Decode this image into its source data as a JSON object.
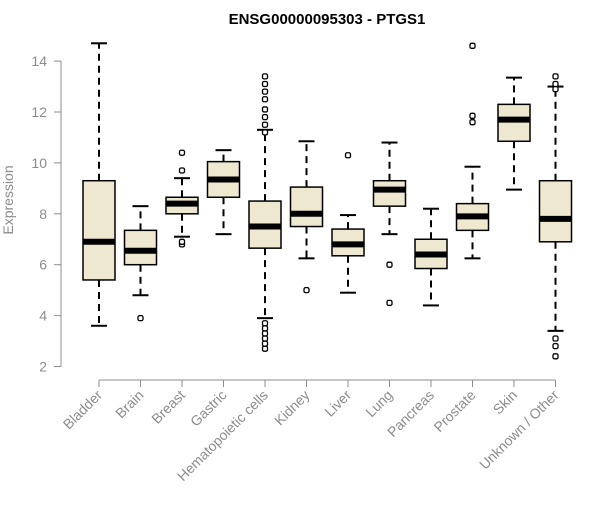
{
  "chart_data": {
    "type": "boxplot",
    "title": "ENSG00000095303 - PTGS1",
    "xlabel": "",
    "ylabel": "Expression",
    "ylim": [
      2,
      14.6
    ],
    "yticks": [
      2,
      4,
      6,
      8,
      10,
      12,
      14
    ],
    "grid": false,
    "box_fill": "#efe8d0",
    "line_color": "#000000",
    "axis_color": "#8c8c8c",
    "categories": [
      "Bladder",
      "Brain",
      "Breast",
      "Gastric",
      "Hematopoietic cells",
      "Kidney",
      "Liver",
      "Lung",
      "Pancreas",
      "Prostate",
      "Skin",
      "Unknown / Other"
    ],
    "boxes": [
      {
        "name": "Bladder",
        "whisker_low": 3.6,
        "q1": 5.4,
        "median": 6.9,
        "q3": 9.3,
        "whisker_high": 14.7,
        "outliers": []
      },
      {
        "name": "Brain",
        "whisker_low": 4.8,
        "q1": 6.0,
        "median": 6.55,
        "q3": 7.35,
        "whisker_high": 8.3,
        "outliers": [
          3.9
        ]
      },
      {
        "name": "Breast",
        "whisker_low": 7.1,
        "q1": 8.0,
        "median": 8.4,
        "q3": 8.65,
        "whisker_high": 9.4,
        "outliers": [
          6.8,
          6.9,
          9.7,
          10.4
        ]
      },
      {
        "name": "Gastric",
        "whisker_low": 7.2,
        "q1": 8.65,
        "median": 9.35,
        "q3": 10.05,
        "whisker_high": 10.5,
        "outliers": []
      },
      {
        "name": "Hematopoietic cells",
        "whisker_low": 3.9,
        "q1": 6.65,
        "median": 7.5,
        "q3": 8.5,
        "whisker_high": 11.3,
        "outliers": [
          2.7,
          2.9,
          3.1,
          3.3,
          3.5,
          3.7,
          11.2,
          11.5,
          11.8,
          12.1,
          12.5,
          12.8,
          13.1,
          13.4
        ]
      },
      {
        "name": "Kidney",
        "whisker_low": 6.25,
        "q1": 7.5,
        "median": 8.0,
        "q3": 9.05,
        "whisker_high": 10.85,
        "outliers": [
          5.0
        ]
      },
      {
        "name": "Liver",
        "whisker_low": 4.9,
        "q1": 6.35,
        "median": 6.8,
        "q3": 7.4,
        "whisker_high": 7.95,
        "outliers": [
          10.3
        ]
      },
      {
        "name": "Lung",
        "whisker_low": 7.2,
        "q1": 8.3,
        "median": 8.95,
        "q3": 9.3,
        "whisker_high": 10.8,
        "outliers": [
          4.5,
          6.0
        ]
      },
      {
        "name": "Pancreas",
        "whisker_low": 4.4,
        "q1": 5.85,
        "median": 6.4,
        "q3": 7.0,
        "whisker_high": 8.2,
        "outliers": []
      },
      {
        "name": "Prostate",
        "whisker_low": 6.25,
        "q1": 7.35,
        "median": 7.9,
        "q3": 8.4,
        "whisker_high": 9.85,
        "outliers": [
          11.6,
          11.85,
          14.6
        ]
      },
      {
        "name": "Skin",
        "whisker_low": 8.95,
        "q1": 10.85,
        "median": 11.7,
        "q3": 12.3,
        "whisker_high": 13.35,
        "outliers": []
      },
      {
        "name": "Unknown / Other",
        "whisker_low": 3.4,
        "q1": 6.9,
        "median": 7.8,
        "q3": 9.3,
        "whisker_high": 13.0,
        "outliers": [
          2.4,
          2.8,
          3.1,
          12.9,
          13.1,
          13.4
        ]
      }
    ]
  }
}
